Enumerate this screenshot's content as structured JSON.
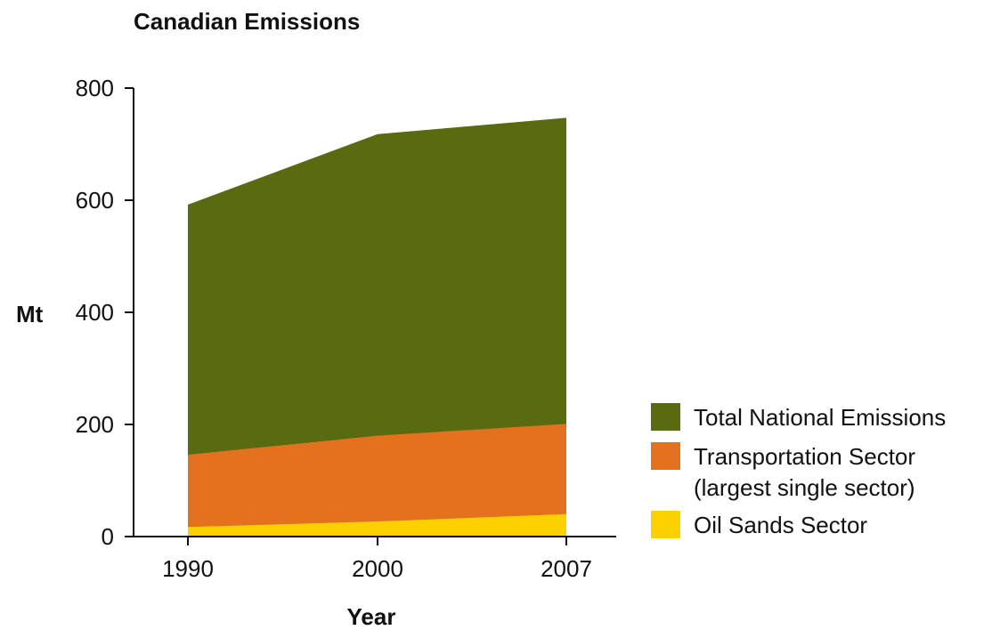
{
  "chart_data": {
    "type": "area",
    "title": "Canadian Emissions",
    "xlabel": "Year",
    "ylabel": "Mt",
    "x": [
      "1990",
      "2000",
      "2007"
    ],
    "ylim": [
      0,
      800
    ],
    "yticks": [
      0,
      200,
      400,
      600,
      800
    ],
    "grid": false,
    "legend_position": "right",
    "series": [
      {
        "name": "Total National Emissions",
        "values": [
          592,
          718,
          747
        ],
        "color": "#586b10"
      },
      {
        "name": "Transportation Sector",
        "name_line2": "(largest single sector)",
        "values": [
          146,
          180,
          201
        ],
        "color": "#e3711e"
      },
      {
        "name": "Oil Sands Sector",
        "values": [
          17,
          27,
          40
        ],
        "color": "#fdd000"
      }
    ]
  }
}
